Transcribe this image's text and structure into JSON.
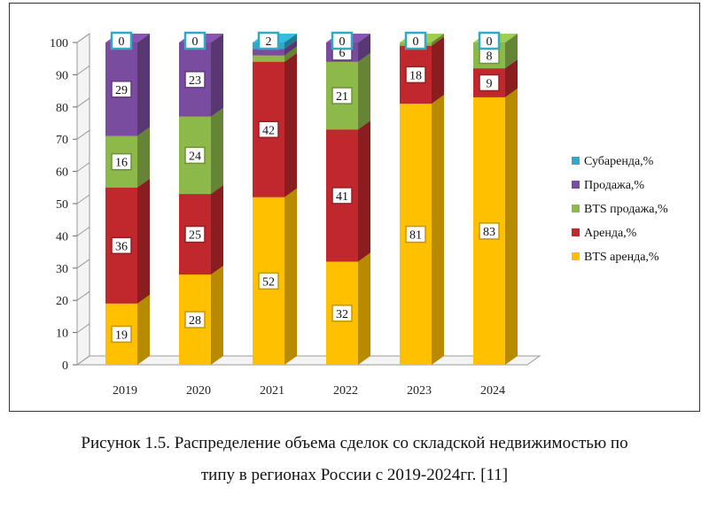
{
  "chart_data": {
    "type": "bar",
    "stacked": true,
    "three_d": true,
    "categories": [
      "2019",
      "2020",
      "2021",
      "2022",
      "2023",
      "2024"
    ],
    "ylim": [
      0,
      100
    ],
    "yticks": [
      0,
      10,
      20,
      30,
      40,
      50,
      60,
      70,
      80,
      90,
      100
    ],
    "series": [
      {
        "name": "BTS аренда,%",
        "color": "#FFC000",
        "values": [
          19,
          28,
          52,
          32,
          81,
          83
        ]
      },
      {
        "name": "Аренда,%",
        "color": "#C0282D",
        "values": [
          36,
          25,
          42,
          41,
          18,
          9
        ]
      },
      {
        "name": "BTS продажа,%",
        "color": "#8DB84A",
        "values": [
          16,
          24,
          2,
          21,
          1,
          8
        ]
      },
      {
        "name": "Продажа,%",
        "color": "#7A4CA0",
        "values": [
          29,
          23,
          2,
          6,
          0,
          0
        ]
      },
      {
        "name": "Субаренда,%",
        "color": "#2FA9C7",
        "values": [
          0,
          0,
          2,
          0,
          0,
          0
        ]
      }
    ],
    "legend_position": "right",
    "grid": false
  },
  "caption": {
    "line1": "Рисунок 1.5. Распределение объема сделок со складской недвижимостью по",
    "line2": "типу в регионах России с 2019-2024гг. [11]"
  }
}
